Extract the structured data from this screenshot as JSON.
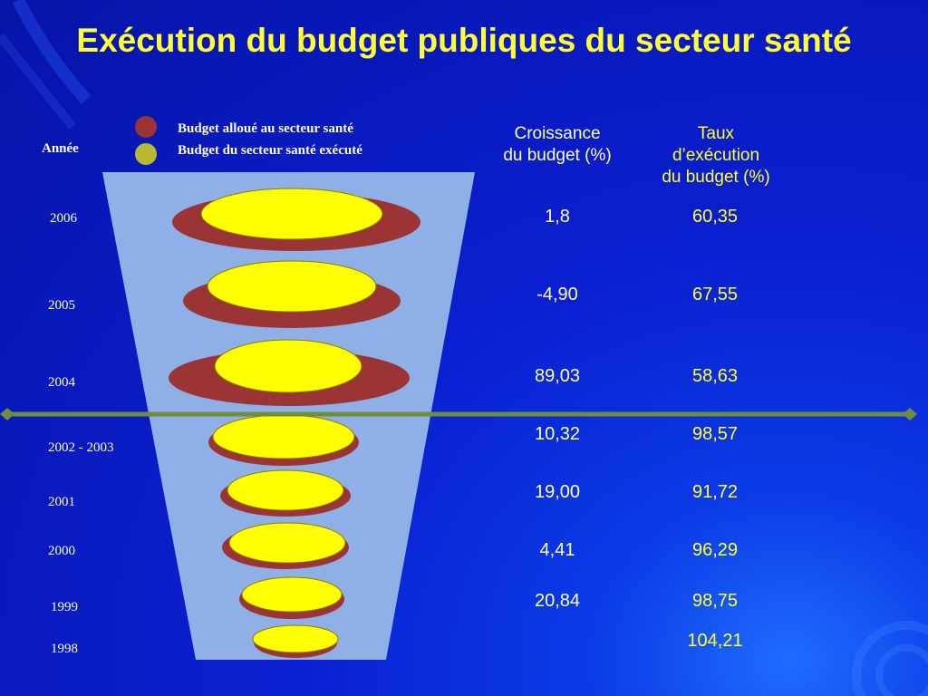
{
  "title": "Exécution du budget publiques du secteur santé",
  "colors": {
    "background": "#0a1fd0",
    "funnel": "#8fb0e6",
    "allocated": "#9b3535",
    "executed": "#ffff00",
    "legend_executed_dot": "#b8b832",
    "divider": "#6f8e3c",
    "title": "#ffff33"
  },
  "legend": {
    "allocated": "Budget alloué au secteur santé",
    "executed": "Budget du secteur santé exécuté"
  },
  "year_header": "Année",
  "columns": {
    "growth_line1": "Croissance",
    "growth_line2": "du budget (%)",
    "rate_line1": "Taux",
    "rate_line2": "d’exécution",
    "rate_line3": "du budget (%)"
  },
  "chart_data": {
    "type": "table",
    "title": "Exécution du budget publiques du secteur santé",
    "categories": [
      "2006",
      "2005",
      "2004",
      "2002 - 2003",
      "2001",
      "2000",
      "1999",
      "1998"
    ],
    "series": [
      {
        "name": "Croissance du budget (%)",
        "values": [
          "1,8",
          "-4,90",
          "89,03",
          "10,32",
          "19,00",
          "4,41",
          "20,84",
          ""
        ]
      },
      {
        "name": "Taux d’exécution du budget (%)",
        "values": [
          "60,35",
          "67,55",
          "58,63",
          "98,57",
          "91,72",
          "96,29",
          "98,75",
          "104,21"
        ]
      }
    ],
    "legend": [
      "Budget alloué au secteur santé",
      "Budget du secteur santé exécuté"
    ],
    "legend_position": "top-center"
  }
}
